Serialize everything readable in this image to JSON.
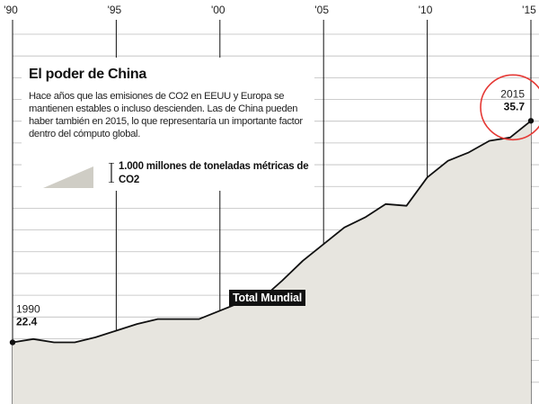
{
  "chart_data": {
    "type": "area",
    "title": "El poder de China",
    "subtitle": "Hace años que las emisiones de CO2 en EEUU y Europa se mantienen estables o incluso descienden. Las de China pueden haber también en 2015, lo que representaría un importante factor dentro del cómputo global.",
    "legend_unit": "1.000 millones de toneladas métricas de CO2",
    "xlabel": "",
    "ylabel": "",
    "x_tick_labels": [
      "'90",
      "'95",
      "'00",
      "'05",
      "'10",
      "'15"
    ],
    "x_ticks": [
      1990,
      1995,
      2000,
      2005,
      2010,
      2015
    ],
    "xlim": [
      1990,
      2015
    ],
    "ylim": [
      18.7,
      40.9
    ],
    "grid": "horizontal",
    "series": [
      {
        "name": "Total Mundial",
        "x": [
          1990,
          1991,
          1992,
          1993,
          1994,
          1995,
          1996,
          1997,
          1998,
          1999,
          2000,
          2001,
          2002,
          2003,
          2004,
          2005,
          2006,
          2007,
          2008,
          2009,
          2010,
          2011,
          2012,
          2013,
          2014,
          2015
        ],
        "values": [
          22.4,
          22.6,
          22.4,
          22.4,
          22.7,
          23.1,
          23.5,
          23.8,
          23.8,
          23.8,
          24.3,
          24.8,
          25.0,
          26.1,
          27.3,
          28.3,
          29.3,
          29.9,
          30.7,
          30.6,
          32.3,
          33.3,
          33.8,
          34.5,
          34.7,
          35.7
        ]
      }
    ],
    "annotations": [
      {
        "year": "1990",
        "value": "22.4"
      },
      {
        "year": "2015",
        "value": "35.7"
      }
    ],
    "colors": {
      "fill": "#e7e5df",
      "line": "#111111",
      "grid": "#bdbdbd",
      "highlight": "#e53935",
      "legend_swatch": "#cfcdc5"
    }
  }
}
